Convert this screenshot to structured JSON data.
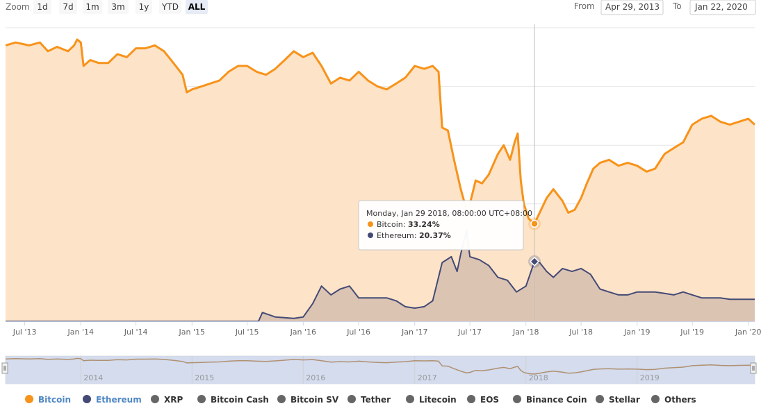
{
  "toolbar": {
    "zoom_label": "Zoom",
    "zoom_buttons": [
      {
        "label": "1d",
        "active": false
      },
      {
        "label": "7d",
        "active": false
      },
      {
        "label": "1m",
        "active": false
      },
      {
        "label": "3m",
        "active": false
      },
      {
        "label": "1y",
        "active": false
      },
      {
        "label": "YTD",
        "active": false
      },
      {
        "label": "ALL",
        "active": true
      }
    ],
    "from_label": "From",
    "from_value": "Apr 29, 2013",
    "to_label": "To",
    "to_value": "Jan 22, 2020"
  },
  "tooltip": {
    "header": "Monday, Jan 29 2018, 08:00:00 UTC+08:00",
    "rows": [
      {
        "name": "Bitcoin",
        "value": "33.24%",
        "color": "#f7931a"
      },
      {
        "name": "Ethereum",
        "value": "20.37%",
        "color": "#434a75"
      }
    ]
  },
  "legend": [
    {
      "name": "Bitcoin",
      "color": "#f7931a",
      "text_color": "#4f87c4",
      "visible": true
    },
    {
      "name": "Ethereum",
      "color": "#434a75",
      "text_color": "#4f87c4",
      "visible": true
    },
    {
      "name": "XRP",
      "color": "#666666",
      "text_color": "#333333",
      "visible": false
    },
    {
      "name": "Bitcoin Cash",
      "color": "#666666",
      "text_color": "#333333",
      "visible": false
    },
    {
      "name": "Bitcoin SV",
      "color": "#666666",
      "text_color": "#333333",
      "visible": false
    },
    {
      "name": "Tether",
      "color": "#666666",
      "text_color": "#333333",
      "visible": false
    },
    {
      "name": "Litecoin",
      "color": "#666666",
      "text_color": "#333333",
      "visible": false
    },
    {
      "name": "EOS",
      "color": "#666666",
      "text_color": "#333333",
      "visible": false
    },
    {
      "name": "Binance Coin",
      "color": "#666666",
      "text_color": "#333333",
      "visible": false
    },
    {
      "name": "Stellar",
      "color": "#666666",
      "text_color": "#333333",
      "visible": false
    },
    {
      "name": "Others",
      "color": "#666666",
      "text_color": "#333333",
      "visible": false
    }
  ],
  "navigator": {
    "year_labels": [
      "2014",
      "2015",
      "2016",
      "2017",
      "2018",
      "2019"
    ]
  },
  "chart_data": {
    "type": "area",
    "title": "",
    "xlabel": "",
    "ylabel": "",
    "ylim": [
      0,
      100
    ],
    "y_grid": [
      0,
      20,
      40,
      60,
      80,
      100
    ],
    "x_tick_labels": [
      "Jul '13",
      "Jan '14",
      "Jul '14",
      "Jan '15",
      "Jul '15",
      "Jan '16",
      "Jul '16",
      "Jan '17",
      "Jul '17",
      "Jan '18",
      "Jul '18",
      "Jan '19",
      "Jul '19",
      "Jan '20"
    ],
    "x_tick_dates": [
      "2013-07-01",
      "2014-01-01",
      "2014-07-01",
      "2015-01-01",
      "2015-07-01",
      "2016-01-01",
      "2016-07-01",
      "2017-01-01",
      "2017-07-01",
      "2018-01-01",
      "2018-07-01",
      "2019-01-01",
      "2019-07-01",
      "2020-01-01"
    ],
    "x_range": [
      "2013-04-29",
      "2020-01-22"
    ],
    "grid": true,
    "legend_position": "bottom",
    "highlight_date": "2018-01-29",
    "series": [
      {
        "name": "Bitcoin",
        "color": "#f7931a",
        "fill": "#fde3c8",
        "points": [
          [
            "2013-04-29",
            94.0
          ],
          [
            "2013-06-01",
            95.0
          ],
          [
            "2013-07-15",
            94.0
          ],
          [
            "2013-08-20",
            95.0
          ],
          [
            "2013-09-15",
            92.0
          ],
          [
            "2013-10-15",
            93.5
          ],
          [
            "2013-11-20",
            92.0
          ],
          [
            "2013-12-10",
            94.0
          ],
          [
            "2013-12-20",
            96.0
          ],
          [
            "2014-01-01",
            95.0
          ],
          [
            "2014-01-10",
            87.0
          ],
          [
            "2014-02-01",
            89.0
          ],
          [
            "2014-03-01",
            88.0
          ],
          [
            "2014-04-01",
            88.0
          ],
          [
            "2014-05-01",
            91.0
          ],
          [
            "2014-06-01",
            90.0
          ],
          [
            "2014-07-01",
            93.0
          ],
          [
            "2014-08-01",
            93.0
          ],
          [
            "2014-09-01",
            94.0
          ],
          [
            "2014-10-01",
            92.0
          ],
          [
            "2014-11-01",
            88.0
          ],
          [
            "2014-12-01",
            84.0
          ],
          [
            "2014-12-15",
            78.0
          ],
          [
            "2015-01-01",
            79.0
          ],
          [
            "2015-02-01",
            80.0
          ],
          [
            "2015-03-01",
            81.0
          ],
          [
            "2015-04-01",
            82.0
          ],
          [
            "2015-05-01",
            85.0
          ],
          [
            "2015-06-01",
            87.0
          ],
          [
            "2015-07-01",
            87.0
          ],
          [
            "2015-08-01",
            85.0
          ],
          [
            "2015-09-01",
            84.0
          ],
          [
            "2015-10-01",
            86.0
          ],
          [
            "2015-11-01",
            89.0
          ],
          [
            "2015-12-01",
            92.0
          ],
          [
            "2016-01-01",
            90.0
          ],
          [
            "2016-02-01",
            91.5
          ],
          [
            "2016-03-01",
            87.0
          ],
          [
            "2016-04-01",
            81.0
          ],
          [
            "2016-05-01",
            83.0
          ],
          [
            "2016-06-01",
            82.0
          ],
          [
            "2016-07-01",
            85.0
          ],
          [
            "2016-08-01",
            82.0
          ],
          [
            "2016-09-01",
            80.0
          ],
          [
            "2016-10-01",
            79.0
          ],
          [
            "2016-11-01",
            81.0
          ],
          [
            "2016-12-01",
            83.0
          ],
          [
            "2017-01-01",
            87.0
          ],
          [
            "2017-02-01",
            86.0
          ],
          [
            "2017-03-01",
            87.0
          ],
          [
            "2017-03-20",
            85.0
          ],
          [
            "2017-04-01",
            66.0
          ],
          [
            "2017-04-20",
            65.0
          ],
          [
            "2017-05-10",
            55.0
          ],
          [
            "2017-06-01",
            45.0
          ],
          [
            "2017-06-20",
            38.0
          ],
          [
            "2017-07-01",
            40.0
          ],
          [
            "2017-07-20",
            48.0
          ],
          [
            "2017-08-10",
            47.0
          ],
          [
            "2017-09-01",
            50.0
          ],
          [
            "2017-10-01",
            57.0
          ],
          [
            "2017-10-20",
            60.0
          ],
          [
            "2017-11-10",
            55.0
          ],
          [
            "2017-11-25",
            61.0
          ],
          [
            "2017-12-05",
            64.0
          ],
          [
            "2017-12-15",
            48.0
          ],
          [
            "2017-12-25",
            40.0
          ],
          [
            "2018-01-10",
            35.0
          ],
          [
            "2018-01-29",
            33.24
          ],
          [
            "2018-02-15",
            37.0
          ],
          [
            "2018-03-10",
            42.0
          ],
          [
            "2018-04-01",
            45.0
          ],
          [
            "2018-05-01",
            41.0
          ],
          [
            "2018-05-20",
            37.0
          ],
          [
            "2018-06-10",
            38.0
          ],
          [
            "2018-07-01",
            42.0
          ],
          [
            "2018-07-20",
            47.0
          ],
          [
            "2018-08-10",
            52.0
          ],
          [
            "2018-09-01",
            54.0
          ],
          [
            "2018-10-01",
            55.0
          ],
          [
            "2018-11-01",
            53.0
          ],
          [
            "2018-12-01",
            54.0
          ],
          [
            "2019-01-01",
            53.0
          ],
          [
            "2019-02-01",
            51.0
          ],
          [
            "2019-03-01",
            52.0
          ],
          [
            "2019-04-01",
            57.0
          ],
          [
            "2019-05-01",
            59.0
          ],
          [
            "2019-06-01",
            61.0
          ],
          [
            "2019-07-01",
            67.0
          ],
          [
            "2019-08-01",
            69.0
          ],
          [
            "2019-09-01",
            70.0
          ],
          [
            "2019-10-01",
            68.0
          ],
          [
            "2019-11-01",
            67.0
          ],
          [
            "2019-12-01",
            68.0
          ],
          [
            "2020-01-01",
            69.0
          ],
          [
            "2020-01-22",
            67.0
          ]
        ]
      },
      {
        "name": "Ethereum",
        "color": "#434a75",
        "fill": "#d8c0b0",
        "points": [
          [
            "2013-04-29",
            0.0
          ],
          [
            "2015-08-07",
            0.0
          ],
          [
            "2015-08-20",
            3.0
          ],
          [
            "2015-10-01",
            1.5
          ],
          [
            "2015-12-01",
            1.0
          ],
          [
            "2016-01-01",
            1.5
          ],
          [
            "2016-02-01",
            6.0
          ],
          [
            "2016-03-01",
            12.0
          ],
          [
            "2016-04-01",
            9.0
          ],
          [
            "2016-05-01",
            11.0
          ],
          [
            "2016-06-01",
            12.0
          ],
          [
            "2016-07-01",
            8.0
          ],
          [
            "2016-08-01",
            8.0
          ],
          [
            "2016-09-01",
            8.0
          ],
          [
            "2016-10-01",
            8.0
          ],
          [
            "2016-11-01",
            7.0
          ],
          [
            "2016-12-01",
            5.0
          ],
          [
            "2017-01-01",
            4.5
          ],
          [
            "2017-02-01",
            5.0
          ],
          [
            "2017-03-01",
            7.0
          ],
          [
            "2017-04-01",
            20.0
          ],
          [
            "2017-05-01",
            22.0
          ],
          [
            "2017-05-20",
            17.0
          ],
          [
            "2017-06-01",
            23.0
          ],
          [
            "2017-06-20",
            31.0
          ],
          [
            "2017-07-01",
            22.0
          ],
          [
            "2017-08-01",
            21.0
          ],
          [
            "2017-09-01",
            19.0
          ],
          [
            "2017-10-01",
            15.0
          ],
          [
            "2017-11-01",
            14.0
          ],
          [
            "2017-12-01",
            10.0
          ],
          [
            "2018-01-01",
            12.0
          ],
          [
            "2018-01-29",
            20.37
          ],
          [
            "2018-02-15",
            20.0
          ],
          [
            "2018-03-10",
            17.0
          ],
          [
            "2018-04-01",
            15.0
          ],
          [
            "2018-05-01",
            18.0
          ],
          [
            "2018-06-01",
            17.0
          ],
          [
            "2018-07-01",
            18.0
          ],
          [
            "2018-08-01",
            16.0
          ],
          [
            "2018-09-01",
            11.0
          ],
          [
            "2018-10-01",
            10.0
          ],
          [
            "2018-11-01",
            9.0
          ],
          [
            "2018-12-01",
            9.0
          ],
          [
            "2019-01-01",
            10.0
          ],
          [
            "2019-02-01",
            10.0
          ],
          [
            "2019-03-01",
            10.0
          ],
          [
            "2019-04-01",
            9.5
          ],
          [
            "2019-05-01",
            9.0
          ],
          [
            "2019-06-01",
            10.0
          ],
          [
            "2019-07-01",
            9.0
          ],
          [
            "2019-08-01",
            8.0
          ],
          [
            "2019-09-01",
            8.0
          ],
          [
            "2019-10-01",
            8.0
          ],
          [
            "2019-11-01",
            7.5
          ],
          [
            "2019-12-01",
            7.5
          ],
          [
            "2020-01-01",
            7.5
          ],
          [
            "2020-01-22",
            7.5
          ]
        ]
      }
    ]
  }
}
